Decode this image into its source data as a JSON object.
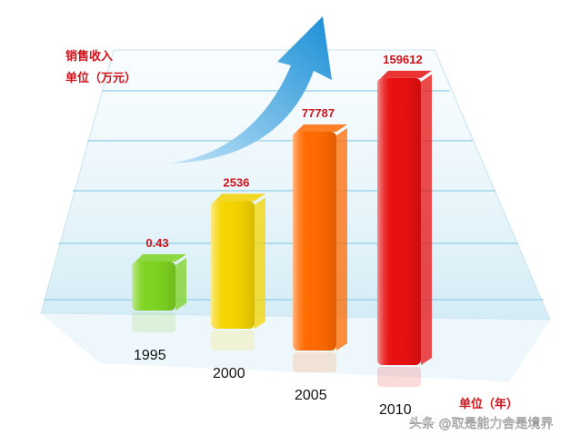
{
  "chart_data": {
    "type": "bar",
    "title": "销售收入",
    "y_label": "单位（万元）",
    "x_label": "单位（年）",
    "categories": [
      "1995",
      "2000",
      "2005",
      "2010"
    ],
    "values": [
      0.43,
      2536,
      77787,
      159612
    ],
    "colors": [
      "#7ed321",
      "#f5d400",
      "#ff6a00",
      "#e81010"
    ],
    "watermark": "头条 @取是能力舍是境界"
  }
}
